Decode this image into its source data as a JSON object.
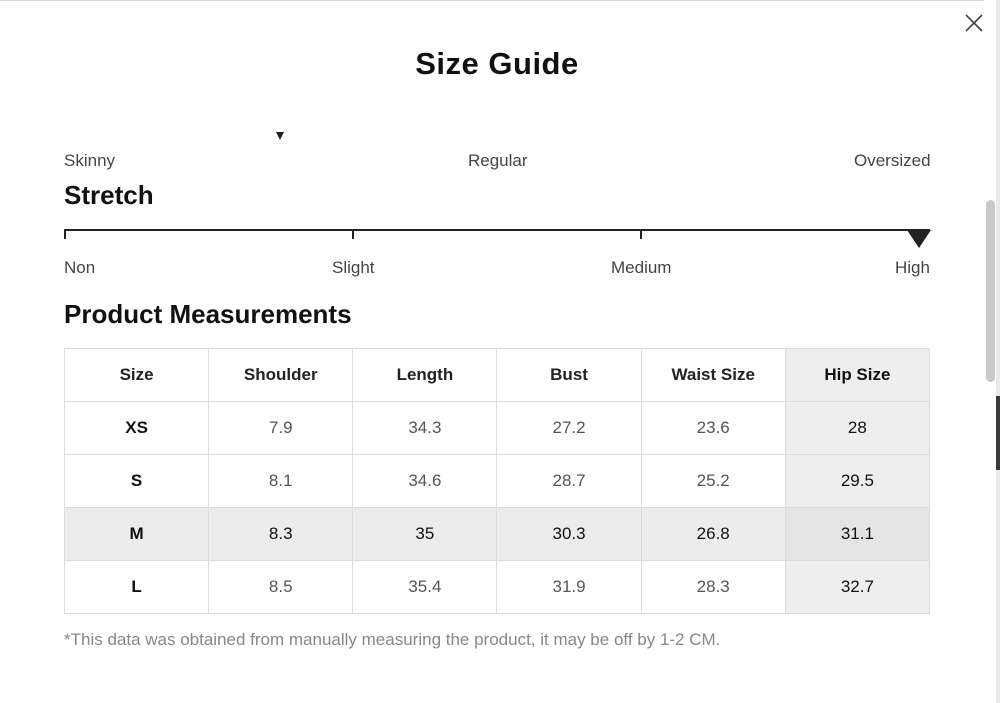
{
  "modal": {
    "title": "Size Guide",
    "close_icon": "close-icon"
  },
  "fit": {
    "labels": [
      "Skinny",
      "Regular",
      "Oversized"
    ],
    "selected_level": 0.25
  },
  "stretch": {
    "heading": "Stretch",
    "labels": [
      "Non",
      "Slight",
      "Medium",
      "High"
    ],
    "selected": "High"
  },
  "measurements": {
    "heading": "Product Measurements",
    "columns": [
      "Size",
      "Shoulder",
      "Length",
      "Bust",
      "Waist Size",
      "Hip Size"
    ],
    "rows": [
      [
        "XS",
        "7.9",
        "34.3",
        "27.2",
        "23.6",
        "28"
      ],
      [
        "S",
        "8.1",
        "34.6",
        "28.7",
        "25.2",
        "29.5"
      ],
      [
        "M",
        "8.3",
        "35",
        "30.3",
        "26.8",
        "31.1"
      ],
      [
        "L",
        "8.5",
        "35.4",
        "31.9",
        "28.3",
        "32.7"
      ]
    ],
    "highlighted_row": "M",
    "highlighted_column": "Hip Size"
  },
  "footnote": "*This data was obtained from manually measuring the product, it may be off by 1-2 CM.",
  "colors": {
    "text": "#222222",
    "muted": "#888888",
    "highlight": "#ececec"
  }
}
